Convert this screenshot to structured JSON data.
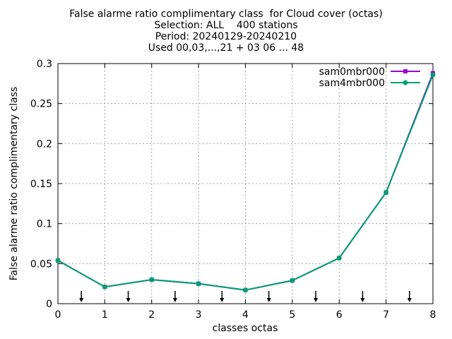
{
  "chart_data": {
    "type": "line",
    "title_lines": [
      "False alarme ratio complimentary class  for Cloud cover (octas)",
      "Selection: ALL    400 stations",
      "Period: 20240129-20240210",
      "Used 00,03,...,21 + 03 06 ... 48"
    ],
    "xlabel": "classes octas",
    "ylabel": "False alarme ratio complimentary class",
    "xlim": [
      0,
      8
    ],
    "ylim": [
      0,
      0.3
    ],
    "x_ticks": [
      "0",
      "1",
      "2",
      "3",
      "4",
      "5",
      "6",
      "7",
      "8"
    ],
    "y_ticks": [
      "0",
      "0.05",
      "0.1",
      "0.15",
      "0.2",
      "0.25",
      "0.3"
    ],
    "grid": true,
    "legend_position": "top-right",
    "x": [
      0,
      1,
      2,
      3,
      4,
      5,
      6,
      7,
      8
    ],
    "series": [
      {
        "name": "sam0mbr000",
        "color": "#9400d3",
        "values": [
          0.054,
          0.021,
          0.03,
          0.025,
          0.017,
          0.029,
          0.057,
          0.139,
          0.288
        ]
      },
      {
        "name": "sam4mbr000",
        "color": "#009e73",
        "values": [
          0.054,
          0.021,
          0.03,
          0.025,
          0.017,
          0.029,
          0.057,
          0.139,
          0.286
        ]
      }
    ],
    "arrow_markers_x": [
      0.5,
      1.5,
      2.5,
      3.5,
      4.5,
      5.5,
      6.5,
      7.5
    ]
  }
}
